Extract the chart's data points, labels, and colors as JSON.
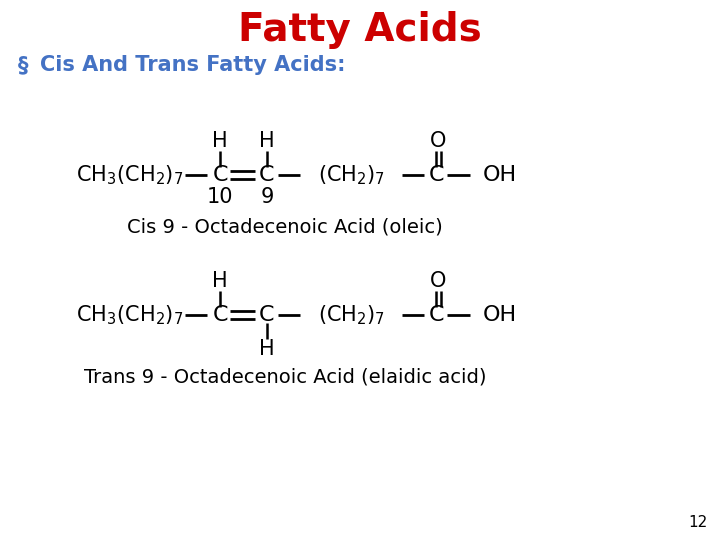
{
  "title": "Fatty Acids",
  "title_color": "#cc0000",
  "title_fontsize": 28,
  "title_fontweight": "bold",
  "bullet_char": "§",
  "bullet_text": "Cis And Trans Fatty Acids:",
  "bullet_color": "#4472c4",
  "bullet_fontsize": 15,
  "bullet_fontweight": "bold",
  "cis_label": "Cis 9 - Octadecenoic Acid (oleic)",
  "trans_label": "Trans 9 - Octadecenoic Acid (elaidic acid)",
  "page_number": "12",
  "bg_color": "#ffffff",
  "text_color": "#000000",
  "mol_fontsize": 15,
  "label_fontsize": 14
}
